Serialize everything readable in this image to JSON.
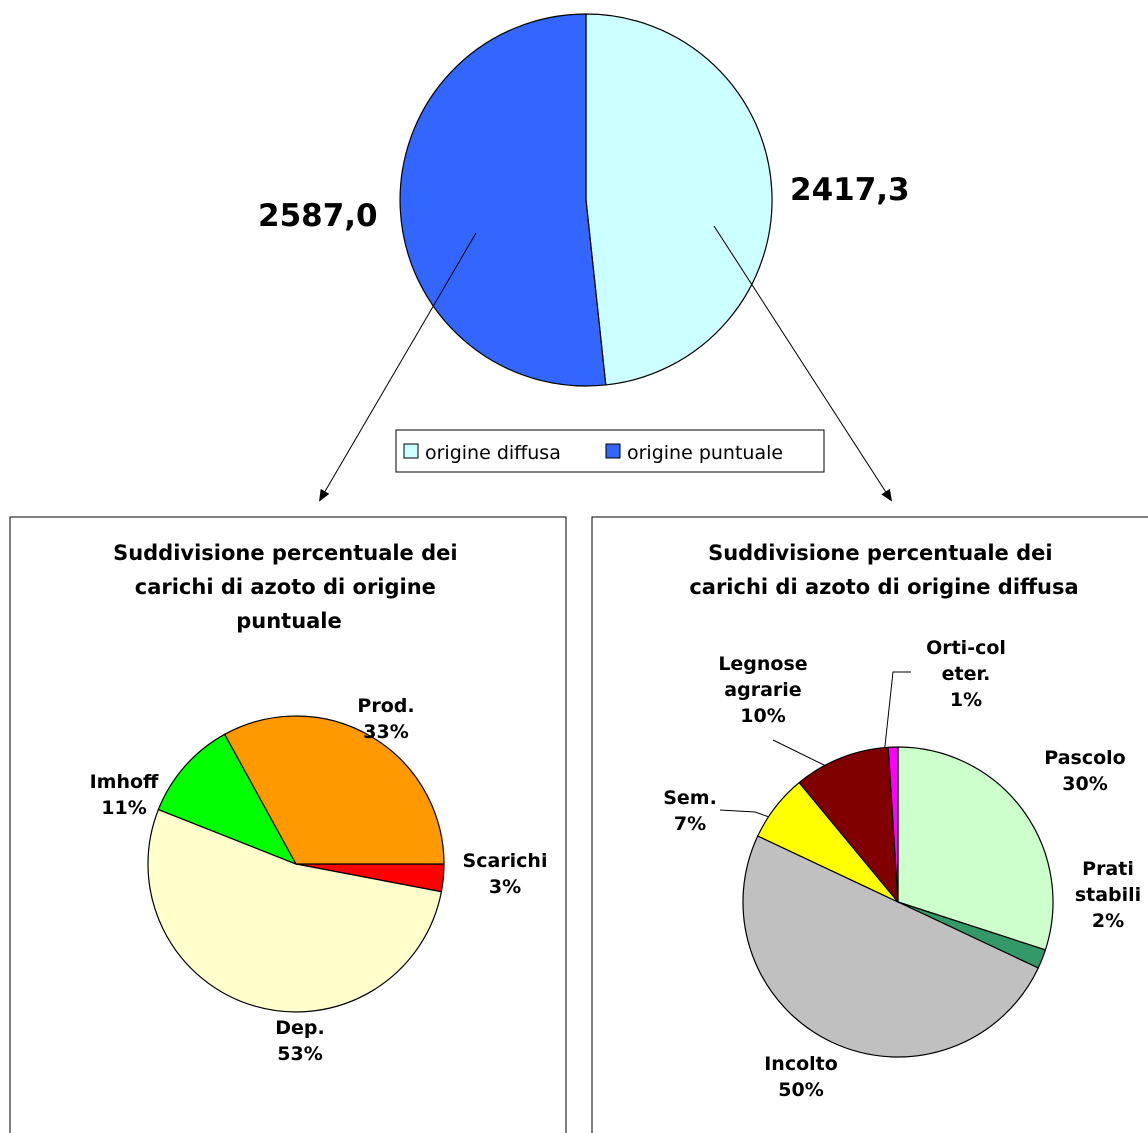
{
  "chart_data": [
    {
      "type": "pie",
      "title": "",
      "series": [
        {
          "values": [
            2417.3,
            2587.0
          ]
        }
      ],
      "categories": [
        "origine diffusa",
        "origine puntuale"
      ],
      "data_labels": [
        "2417,3",
        "2587,0"
      ],
      "colors": [
        "#ccffff",
        "#3366ff"
      ],
      "legend": {
        "placement": "bottom",
        "labels": [
          "origine diffusa",
          "origine puntuale"
        ]
      }
    },
    {
      "type": "pie",
      "title": "Suddivisione percentuale dei carichi di azoto di origine puntuale",
      "title_lines": [
        "Suddivisione percentuale dei",
        "carichi di azoto di origine",
        "puntuale"
      ],
      "categories": [
        "Scarichi",
        "Dep.",
        "Imhoff",
        "Prod."
      ],
      "values": [
        3,
        53,
        11,
        33
      ],
      "label_lines": [
        [
          "Scarichi",
          "3%"
        ],
        [
          "Dep.",
          "53%"
        ],
        [
          "Imhoff",
          "11%"
        ],
        [
          "Prod.",
          "33%"
        ]
      ],
      "colors": [
        "#ff0000",
        "#ffffcc",
        "#00ff00",
        "#ff9900"
      ]
    },
    {
      "type": "pie",
      "title": "Suddivisione percentuale dei carichi di azoto di origine diffusa",
      "title_lines": [
        "Suddivisione percentuale dei",
        "carichi di azoto di origine diffusa"
      ],
      "categories": [
        "Pascolo",
        "Prati stabili",
        "Incolto",
        "Sem.",
        "Legnose agrarie",
        "Orti-col eter."
      ],
      "values": [
        30,
        2,
        50,
        7,
        10,
        1
      ],
      "label_lines": [
        [
          "Pascolo",
          "30%"
        ],
        [
          "Prati",
          "stabili",
          "2%"
        ],
        [
          "Incolto",
          "50%"
        ],
        [
          "Sem.",
          "7%"
        ],
        [
          "Legnose",
          "agrarie",
          "10%"
        ],
        [
          "Orti-col",
          "eter.",
          "1%"
        ]
      ],
      "colors": [
        "#ccffcc",
        "#339966",
        "#c0c0c0",
        "#ffff00",
        "#800000",
        "#ff00ff"
      ]
    }
  ]
}
